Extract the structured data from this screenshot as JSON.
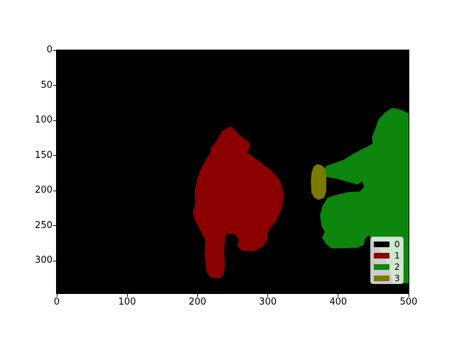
{
  "figure": {
    "background": "#ffffff",
    "plot_background": "#000000"
  },
  "axes": {
    "x_ticks": [
      "0",
      "100",
      "200",
      "300",
      "400",
      "500"
    ],
    "y_ticks": [
      "0",
      "50",
      "100",
      "150",
      "200",
      "250",
      "300"
    ]
  },
  "legend": {
    "position": "lower right",
    "entries": [
      {
        "label": "0",
        "color": "#000000"
      },
      {
        "label": "1",
        "color": "#8b0000"
      },
      {
        "label": "2",
        "color": "#0e860e"
      },
      {
        "label": "3",
        "color": "#7a7a00"
      }
    ]
  },
  "chart_data": {
    "type": "heatmap",
    "subtype": "segmentation-mask",
    "title": "",
    "xlabel": "",
    "ylabel": "",
    "x_range": [
      0,
      500
    ],
    "y_range": [
      0,
      346
    ],
    "y_inverted": true,
    "grid": false,
    "x_tick_values": [
      0,
      100,
      200,
      300,
      400,
      500
    ],
    "y_tick_values": [
      0,
      50,
      100,
      150,
      200,
      250,
      300
    ],
    "legend_position": "lower right",
    "classes": [
      {
        "label": "0",
        "color": "#000000"
      },
      {
        "label": "1",
        "color": "#8b0000"
      },
      {
        "label": "2",
        "color": "#0e860e"
      },
      {
        "label": "3",
        "color": "#7a7a00"
      }
    ],
    "regions": [
      {
        "class": "0",
        "color": "#000000",
        "points": [
          [
            0,
            0
          ],
          [
            500,
            0
          ],
          [
            500,
            346
          ],
          [
            0,
            346
          ]
        ]
      },
      {
        "class": "1",
        "color": "#8b0000",
        "points": [
          [
            225,
            132
          ],
          [
            235,
            115
          ],
          [
            247,
            108
          ],
          [
            260,
            121
          ],
          [
            275,
            133
          ],
          [
            271,
            146
          ],
          [
            286,
            157
          ],
          [
            306,
            172
          ],
          [
            318,
            187
          ],
          [
            323,
            207
          ],
          [
            320,
            225
          ],
          [
            312,
            243
          ],
          [
            303,
            254
          ],
          [
            299,
            262
          ],
          [
            300,
            270
          ],
          [
            292,
            280
          ],
          [
            279,
            287
          ],
          [
            263,
            285
          ],
          [
            256,
            278
          ],
          [
            259,
            270
          ],
          [
            254,
            263
          ],
          [
            247,
            261
          ],
          [
            240,
            263
          ],
          [
            238,
            284
          ],
          [
            239,
            307
          ],
          [
            237,
            319
          ],
          [
            232,
            325
          ],
          [
            219,
            324
          ],
          [
            213,
            316
          ],
          [
            210,
            291
          ],
          [
            211,
            270
          ],
          [
            203,
            255
          ],
          [
            196,
            241
          ],
          [
            193,
            229
          ],
          [
            197,
            219
          ],
          [
            196,
            201
          ],
          [
            200,
            181
          ],
          [
            205,
            169
          ],
          [
            212,
            156
          ],
          [
            218,
            147
          ],
          [
            219,
            139
          ]
        ]
      },
      {
        "class": "2",
        "color": "#0e860e",
        "points": [
          [
            500,
            90
          ],
          [
            490,
            85
          ],
          [
            477,
            82
          ],
          [
            466,
            89
          ],
          [
            457,
            99
          ],
          [
            453,
            111
          ],
          [
            448,
            123
          ],
          [
            449,
            133
          ],
          [
            438,
            139
          ],
          [
            424,
            146
          ],
          [
            408,
            156
          ],
          [
            391,
            162
          ],
          [
            382,
            165
          ],
          [
            382,
            180
          ],
          [
            398,
            183
          ],
          [
            416,
            188
          ],
          [
            427,
            191
          ],
          [
            434,
            187
          ],
          [
            437,
            194
          ],
          [
            431,
            201
          ],
          [
            414,
            202
          ],
          [
            397,
            206
          ],
          [
            385,
            210
          ],
          [
            378,
            221
          ],
          [
            374,
            235
          ],
          [
            376,
            249
          ],
          [
            381,
            259
          ],
          [
            377,
            267
          ],
          [
            383,
            276
          ],
          [
            390,
            282
          ],
          [
            408,
            282
          ],
          [
            428,
            281
          ],
          [
            436,
            277
          ],
          [
            438,
            269
          ],
          [
            443,
            263
          ],
          [
            453,
            276
          ],
          [
            464,
            292
          ],
          [
            472,
            309
          ],
          [
            476,
            324
          ],
          [
            478,
            332
          ],
          [
            500,
            332
          ]
        ]
      },
      {
        "class": "3",
        "color": "#7a7a00",
        "points": [
          [
            370,
            162
          ],
          [
            377,
            164
          ],
          [
            382,
            169
          ],
          [
            383,
            181
          ],
          [
            383,
            201
          ],
          [
            380,
            210
          ],
          [
            372,
            213
          ],
          [
            366,
            210
          ],
          [
            362,
            203
          ],
          [
            361,
            187
          ],
          [
            362,
            174
          ],
          [
            365,
            166
          ]
        ]
      }
    ]
  }
}
